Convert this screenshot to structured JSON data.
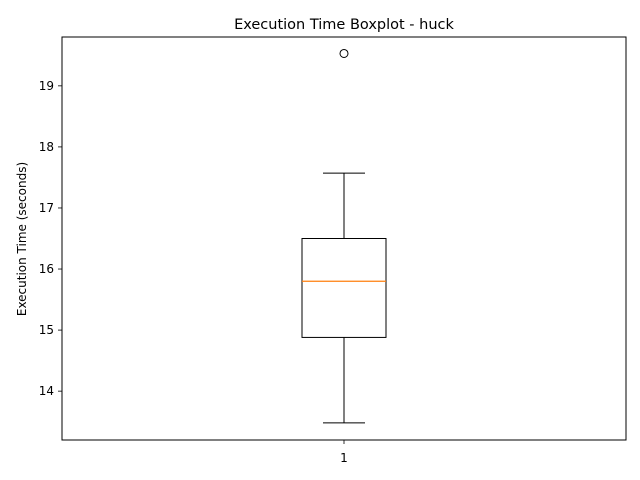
{
  "chart_data": {
    "type": "boxplot",
    "title": "Execution Time Boxplot - huck",
    "xlabel": "",
    "ylabel": "Execution Time (seconds)",
    "categories": [
      "1"
    ],
    "ylim": [
      13.2,
      19.8
    ],
    "yticks": [
      14,
      15,
      16,
      17,
      18,
      19
    ],
    "grid": false,
    "boxes": [
      {
        "category": "1",
        "whisker_low": 13.48,
        "q1": 14.88,
        "median": 15.8,
        "q3": 16.5,
        "whisker_high": 17.57,
        "outliers": [
          19.53
        ]
      }
    ],
    "colors": {
      "box": "#000000",
      "median": "#ff7f0e",
      "outlier": "#000000"
    }
  }
}
